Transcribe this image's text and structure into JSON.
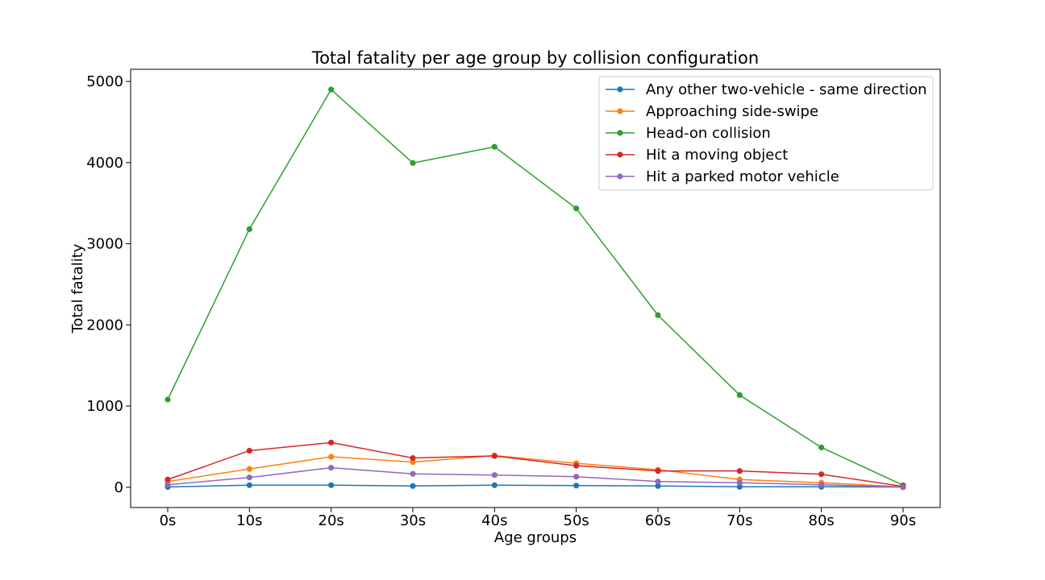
{
  "chart_data": {
    "type": "line",
    "title": "Total fatality per age group by collision configuration",
    "xlabel": "Age groups",
    "ylabel": "Total fatality",
    "categories": [
      "0s",
      "10s",
      "20s",
      "30s",
      "40s",
      "50s",
      "60s",
      "70s",
      "80s",
      "90s"
    ],
    "ylim": [
      -250,
      5150
    ],
    "yticks": [
      0,
      1000,
      2000,
      3000,
      4000,
      5000
    ],
    "grid": false,
    "legend_position": "top-right",
    "series": [
      {
        "name": "Any other two-vehicle - same direction",
        "color": "#1f77b4",
        "values": [
          3,
          25,
          25,
          15,
          25,
          20,
          15,
          5,
          5,
          2
        ]
      },
      {
        "name": "Approaching side-swipe",
        "color": "#ff7f0e",
        "values": [
          70,
          225,
          375,
          310,
          390,
          295,
          215,
          95,
          55,
          5
        ]
      },
      {
        "name": "Head-on collision",
        "color": "#2ca02c",
        "values": [
          1080,
          3180,
          4900,
          3995,
          4195,
          3435,
          2120,
          1135,
          490,
          25
        ]
      },
      {
        "name": "Hit a moving object",
        "color": "#d62728",
        "values": [
          95,
          450,
          550,
          360,
          385,
          265,
          200,
          200,
          160,
          10
        ]
      },
      {
        "name": "Hit a parked motor vehicle",
        "color": "#9467bd",
        "values": [
          30,
          120,
          240,
          165,
          150,
          130,
          70,
          55,
          30,
          0
        ]
      }
    ]
  }
}
